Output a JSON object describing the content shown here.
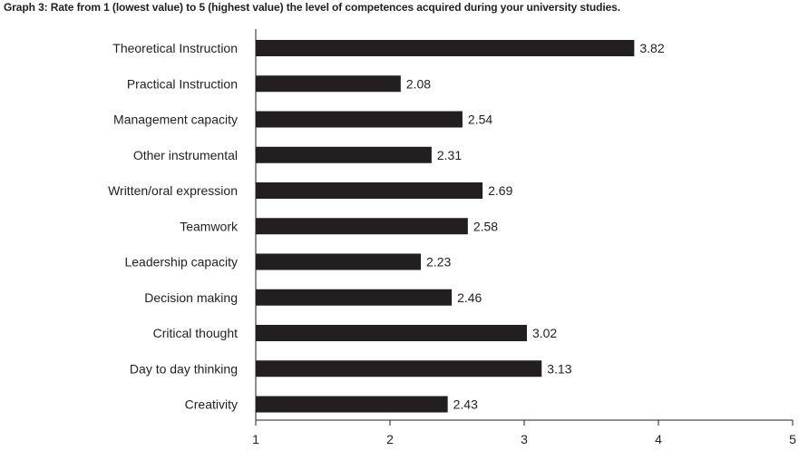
{
  "title": "Graph 3: Rate from 1 (lowest value) to 5 (highest value) the level of competences acquired during your university studies.",
  "chart_data": {
    "type": "bar",
    "orientation": "horizontal",
    "title": "Graph 3: Rate from 1 (lowest value) to 5 (highest value) the level of competences acquired during your university studies.",
    "xlabel": "",
    "ylabel": "",
    "xlim": [
      1,
      5
    ],
    "xticks": [
      "1",
      "2",
      "3",
      "4",
      "5"
    ],
    "grid": false,
    "bar_color": "#231f20",
    "categories": [
      "Theoretical Instruction",
      "Practical Instruction",
      "Management capacity",
      "Other instrumental",
      "Written/oral expression",
      "Teamwork",
      "Leadership capacity",
      "Decision making",
      "Critical thought",
      "Day to day thinking",
      "Creativity"
    ],
    "values": [
      3.82,
      2.08,
      2.54,
      2.31,
      2.69,
      2.58,
      2.23,
      2.46,
      3.02,
      3.13,
      2.43
    ],
    "value_labels": [
      "3.82",
      "2.08",
      "2.54",
      "2.31",
      "2.69",
      "2.58",
      "2.23",
      "2.46",
      "3.02",
      "3.13",
      "2.43"
    ]
  }
}
